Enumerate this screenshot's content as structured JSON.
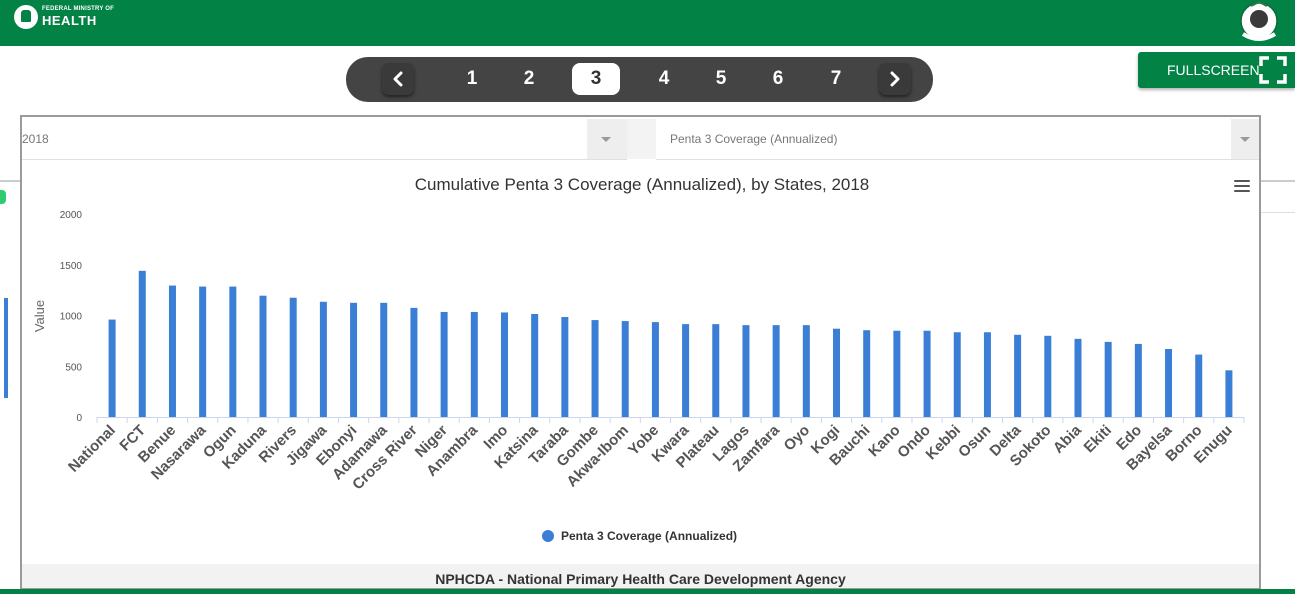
{
  "header": {
    "brand_small": "FEDERAL MINISTRY OF",
    "brand_big": "HEALTH",
    "left_logo_icon": "coat-of-arms-icon",
    "right_logo_icon": "emblem-icon",
    "bar_color": "#028245"
  },
  "pager": {
    "prev_icon": "chevron-left-icon",
    "next_icon": "chevron-right-icon",
    "pages": [
      "1",
      "2",
      "3",
      "4",
      "5",
      "6",
      "7"
    ],
    "active_page": "3"
  },
  "fullscreen": {
    "label": "FULLSCREEN",
    "icon": "fullscreen-icon"
  },
  "filters": {
    "year": "2018",
    "indicator": "Penta 3 Coverage (Annualized)"
  },
  "footer": {
    "text": "NPHCDA - National Primary Health Care Development Agency"
  },
  "chart_data": {
    "type": "bar",
    "title": "Cumulative Penta 3 Coverage (Annualized), by States, 2018",
    "xlabel": "",
    "ylabel": "Value",
    "ylim": [
      0,
      2000
    ],
    "yticks": [
      0,
      500,
      1000,
      1500,
      2000
    ],
    "grid": false,
    "legend_placement": "bottom-center",
    "bar_color": "#3a7fd5",
    "categories": [
      "National",
      "FCT",
      "Benue",
      "Nasarawa",
      "Ogun",
      "Kaduna",
      "Rivers",
      "Jigawa",
      "Ebonyi",
      "Adamawa",
      "Cross River",
      "Niger",
      "Anambra",
      "Imo",
      "Katsina",
      "Taraba",
      "Gombe",
      "Akwa-Ibom",
      "Yobe",
      "Kwara",
      "Plateau",
      "Lagos",
      "Zamfara",
      "Oyo",
      "Kogi",
      "Bauchi",
      "Kano",
      "Ondo",
      "Kebbi",
      "Osun",
      "Delta",
      "Sokoto",
      "Abia",
      "Ekiti",
      "Edo",
      "Bayelsa",
      "Borno",
      "Enugu"
    ],
    "series": [
      {
        "name": "Penta 3 Coverage (Annualized)",
        "values": [
          960,
          1440,
          1295,
          1285,
          1285,
          1195,
          1175,
          1135,
          1125,
          1125,
          1075,
          1035,
          1035,
          1030,
          1015,
          985,
          955,
          945,
          935,
          915,
          915,
          905,
          905,
          905,
          870,
          855,
          850,
          850,
          835,
          835,
          810,
          800,
          770,
          740,
          720,
          670,
          615,
          460
        ]
      }
    ]
  }
}
